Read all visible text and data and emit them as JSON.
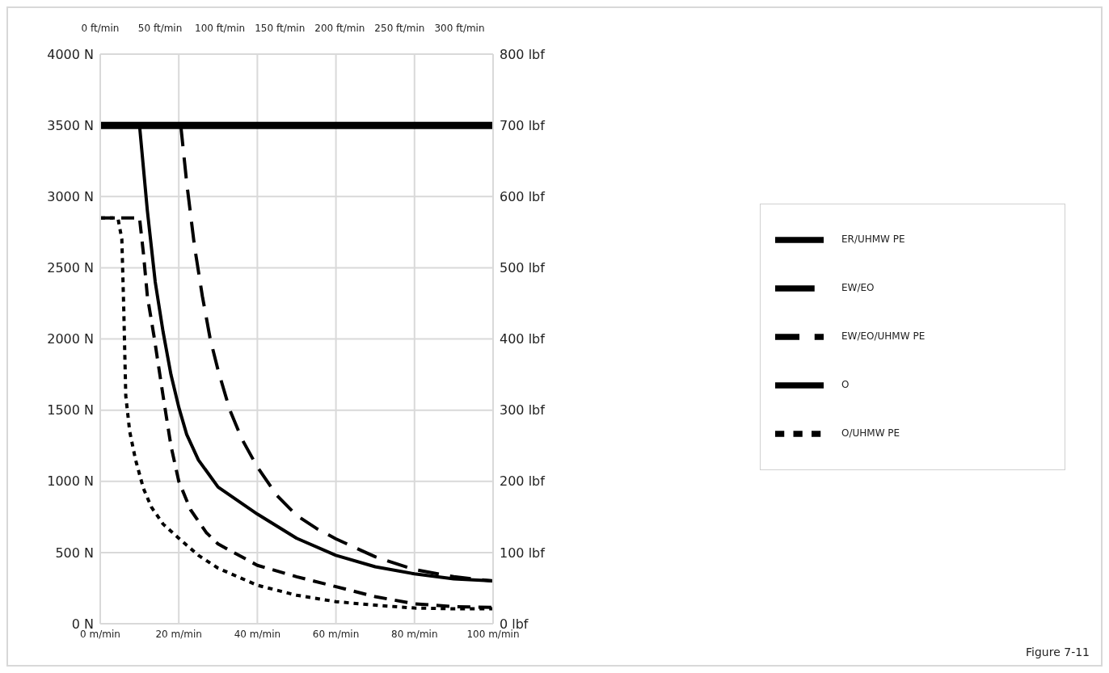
{
  "chart_data": {
    "type": "line",
    "xlim": [
      0,
      100
    ],
    "xticks": [
      {
        "value": 0,
        "label": "0 m/min"
      },
      {
        "value": 20,
        "label": "20 m/min"
      },
      {
        "value": 40,
        "label": "40 m/min"
      },
      {
        "value": 60,
        "label": "60 m/min"
      },
      {
        "value": 80,
        "label": "80 m/min"
      },
      {
        "value": 100,
        "label": "100 m/min"
      }
    ],
    "x2lim": [
      0,
      328
    ],
    "x2ticks": [
      {
        "value": 0,
        "label": "0 ft/min"
      },
      {
        "value": 50,
        "label": "50 ft/min"
      },
      {
        "value": 100,
        "label": "100 ft/min"
      },
      {
        "value": 150,
        "label": "150 ft/min"
      },
      {
        "value": 200,
        "label": "200 ft/min"
      },
      {
        "value": 250,
        "label": "250 ft/min"
      },
      {
        "value": 300,
        "label": "300 ft/min"
      }
    ],
    "ylim": [
      0,
      4000
    ],
    "yticks": [
      {
        "value": 0,
        "label": "0 N"
      },
      {
        "value": 500,
        "label": "500 N"
      },
      {
        "value": 1000,
        "label": "1000 N"
      },
      {
        "value": 1500,
        "label": "1500 N"
      },
      {
        "value": 2000,
        "label": "2000 N"
      },
      {
        "value": 2500,
        "label": "2500 N"
      },
      {
        "value": 3000,
        "label": "3000 N"
      },
      {
        "value": 3500,
        "label": "3500 N"
      },
      {
        "value": 4000,
        "label": "4000 N"
      }
    ],
    "y2lim": [
      0,
      800
    ],
    "y2ticks": [
      {
        "value": 0,
        "label": "0 lbf"
      },
      {
        "value": 100,
        "label": "100 lbf"
      },
      {
        "value": 200,
        "label": "200 lbf"
      },
      {
        "value": 300,
        "label": "300 lbf"
      },
      {
        "value": 400,
        "label": "400 lbf"
      },
      {
        "value": 500,
        "label": "500 lbf"
      },
      {
        "value": 600,
        "label": "600 lbf"
      },
      {
        "value": 700,
        "label": "700 lbf"
      },
      {
        "value": 800,
        "label": "800 lbf"
      }
    ],
    "grid": true,
    "legend": "right",
    "marker": "none",
    "series": [
      {
        "name": "EW/EO",
        "color": "#000000",
        "line_style": "dashed",
        "x": [
          20.5,
          22,
          24,
          26,
          28,
          30,
          33,
          36,
          40,
          45,
          50,
          55,
          60,
          70,
          80,
          90,
          100
        ],
        "values": [
          3500,
          3100,
          2650,
          2300,
          2000,
          1780,
          1500,
          1300,
          1100,
          900,
          760,
          670,
          596,
          470,
          380,
          330,
          300
        ]
      },
      {
        "name": "EW/EO/UHMW PE",
        "color": "#000000",
        "line_style": "dashed",
        "x": [
          0,
          10,
          11,
          12,
          13.8,
          16,
          18,
          20,
          23,
          27,
          30,
          40,
          50,
          60,
          70,
          80,
          90,
          100
        ],
        "values": [
          2850,
          2850,
          2600,
          2300,
          2000,
          1600,
          1250,
          1000,
          800,
          640,
          560,
          410,
          330,
          260,
          190,
          140,
          120,
          115
        ]
      },
      {
        "name": "O/UHMW PE",
        "color": "#000000",
        "line_style": "dotted",
        "x": [
          0,
          4.5,
          5.5,
          6,
          6.5,
          7.5,
          9,
          11,
          13,
          16,
          20,
          25,
          30,
          40,
          50,
          60,
          70,
          80,
          90,
          100
        ],
        "values": [
          2850,
          2850,
          2700,
          2200,
          1600,
          1350,
          1150,
          950,
          820,
          700,
          600,
          480,
          390,
          270,
          200,
          155,
          130,
          110,
          105,
          105
        ]
      },
      {
        "name": "O",
        "color": "#000000",
        "line_style": "solid",
        "x": [
          10,
          12,
          14,
          16,
          18,
          20,
          22,
          25,
          30,
          40,
          50,
          60,
          70,
          80,
          90,
          100
        ],
        "values": [
          3500,
          2900,
          2400,
          2050,
          1750,
          1520,
          1330,
          1150,
          960,
          770,
          600,
          480,
          400,
          350,
          315,
          300
        ]
      },
      {
        "name": "ER/UHMW PE",
        "color": "#000000",
        "line_style": "solid",
        "x": [
          0,
          100
        ],
        "values": [
          3500,
          3500
        ]
      }
    ],
    "annotations": [
      "Figure 7-11"
    ]
  }
}
